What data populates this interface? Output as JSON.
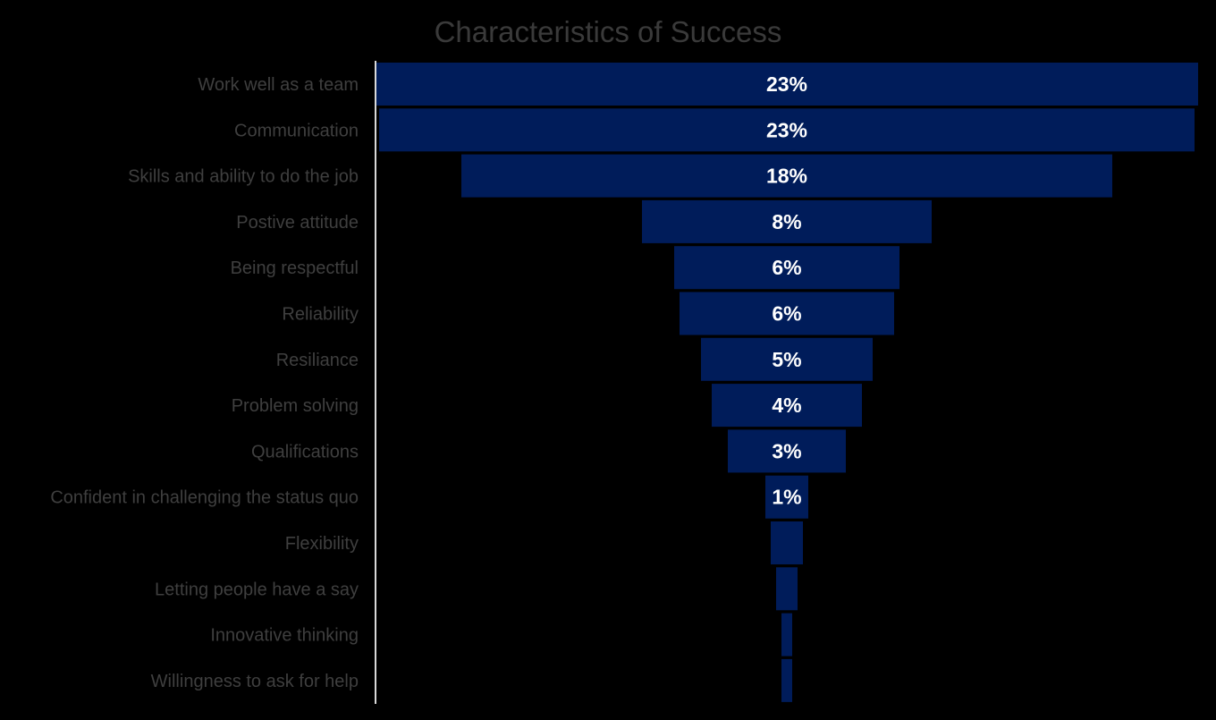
{
  "chart_data": {
    "type": "bar",
    "subtype": "funnel",
    "title": "Characteristics of Success",
    "categories": [
      "Work well as a team",
      "Communication",
      "Skills and ability to do the job",
      "Postive attitude",
      "Being respectful",
      "Reliability",
      "Resiliance",
      "Problem solving",
      "Qualifications",
      "Confident in challenging the status quo",
      "Flexibility",
      "Letting people have a say",
      "Innovative thinking",
      "Willingness to ask for help"
    ],
    "values": [
      23.0,
      22.8,
      18.2,
      8.1,
      6.3,
      6.0,
      4.8,
      4.2,
      3.3,
      1.2,
      0.9,
      0.6,
      0.3,
      0.3
    ],
    "data_labels": [
      "23%",
      "23%",
      "18%",
      "8%",
      "6%",
      "6%",
      "5%",
      "4%",
      "3%",
      "1%",
      "",
      "",
      "",
      ""
    ],
    "xlabel": "",
    "ylabel": "",
    "legend": "none",
    "grid": false,
    "colors": {
      "bar": "#001c5a",
      "background": "#000000",
      "axis": "#d9d9d9",
      "title": "#3a3a3a",
      "category_label": "#3f3f3f",
      "data_label": "#ffffff"
    }
  }
}
